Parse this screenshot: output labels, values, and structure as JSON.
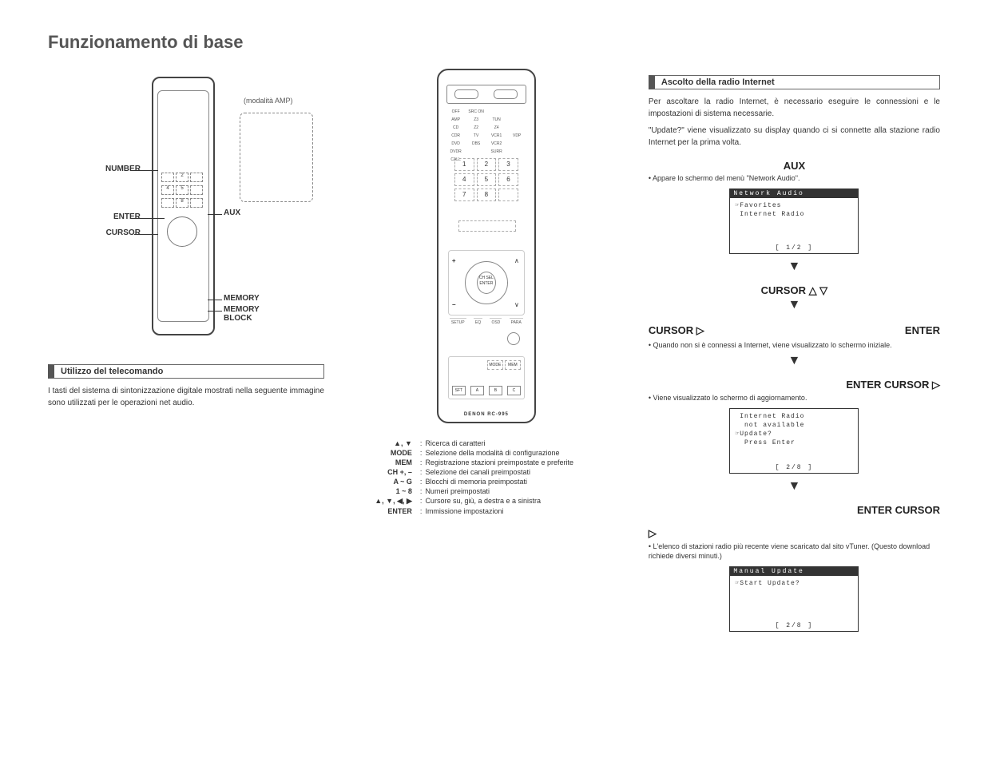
{
  "title": "Funzionamento di base",
  "left": {
    "amp_caption": "(modalità AMP)",
    "labels": {
      "number": "NUMBER",
      "enter": "ENTER",
      "cursor": "CURSOR",
      "aux": "AUX",
      "memory": "MEMORY",
      "memory_block": "MEMORY BLOCK"
    },
    "section": "Utilizzo del telecomando",
    "paragraph": "I tasti del sistema di sintonizzazione digitale mostrati nella seguente immagine sono utilizzati per le operazioni net audio."
  },
  "mid": {
    "src_labels": [
      "OFF",
      "SRC ON",
      "",
      "",
      "AMP",
      "Z3",
      "TUN",
      "",
      "CD",
      "Z2",
      "Z4",
      "",
      "CDR",
      "TV",
      "VCR1",
      "VDP",
      "DVD",
      "DBS",
      "VCR2",
      "",
      "DVDR",
      "",
      "SURR",
      "",
      "CALL"
    ],
    "num_labels": [
      "1",
      "2",
      "3",
      "4",
      "5",
      "6",
      "7",
      "8",
      ""
    ],
    "menu_labels": [
      "SETUP",
      "EQ",
      "OSD",
      "PARA"
    ],
    "lower_r1": [
      "MODE",
      "MEM"
    ],
    "lower_r2": [
      "SFT",
      "A",
      "B",
      "C"
    ],
    "brand": "DENON  RC-995",
    "dpad_center": "CH SEL ENTER",
    "legend": [
      {
        "k": "▲, ▼",
        "d": "Ricerca di caratteri"
      },
      {
        "k": "MODE",
        "d": "Selezione della modalità di configurazione"
      },
      {
        "k": "MEM",
        "d": "Registrazione stazioni preimpostate e preferite"
      },
      {
        "k": "CH +, –",
        "d": "Selezione dei canali preimpostati"
      },
      {
        "k": "A ~ G",
        "d": "Blocchi di memoria preimpostati"
      },
      {
        "k": "1 ~ 8",
        "d": "Numeri preimpostati"
      },
      {
        "k": "▲, ▼, ◀, ▶",
        "d": "Cursore su, giù, a destra e a sinistra"
      },
      {
        "k": "ENTER",
        "d": "Immissione impostazioni"
      }
    ]
  },
  "right": {
    "section": "Ascolto della radio Internet",
    "intro1": "Per ascoltare la radio Internet, è necessario eseguire le connessioni e le impostazioni di sistema necessarie.",
    "intro2": "\"Update?\" viene visualizzato su display quando ci si connette alla stazione radio Internet per la prima volta.",
    "step1": {
      "label": "AUX",
      "bullet": "Appare lo schermo del menù \"Network Audio\".",
      "lcd": {
        "title": "Network Audio",
        "lines": "☞Favorites\n Internet Radio",
        "footer": "[    1/2    ]"
      }
    },
    "step2": {
      "label_top": "CURSOR △   ▽",
      "label_left": "CURSOR ▷",
      "label_right": "ENTER",
      "bullet": "Quando non si è connessi a Internet, viene visualizzato lo schermo iniziale."
    },
    "step3": {
      "label": "ENTER   CURSOR ▷",
      "bullet": "Viene visualizzato lo schermo di aggiornamento.",
      "lcd": {
        "lines": " Internet Radio\n  not available\n☞Update?\n  Press Enter",
        "footer": "[    2/8    ]"
      }
    },
    "step4": {
      "label_top": "ENTER    CURSOR",
      "label_icon": "▷",
      "bullet": "L'elenco di stazioni radio più recente viene scaricato dal sito vTuner. (Questo download richiede diversi minuti.)",
      "lcd": {
        "title": "Manual Update",
        "lines": "☞Start Update?",
        "footer": "[    2/8    ]"
      }
    }
  }
}
